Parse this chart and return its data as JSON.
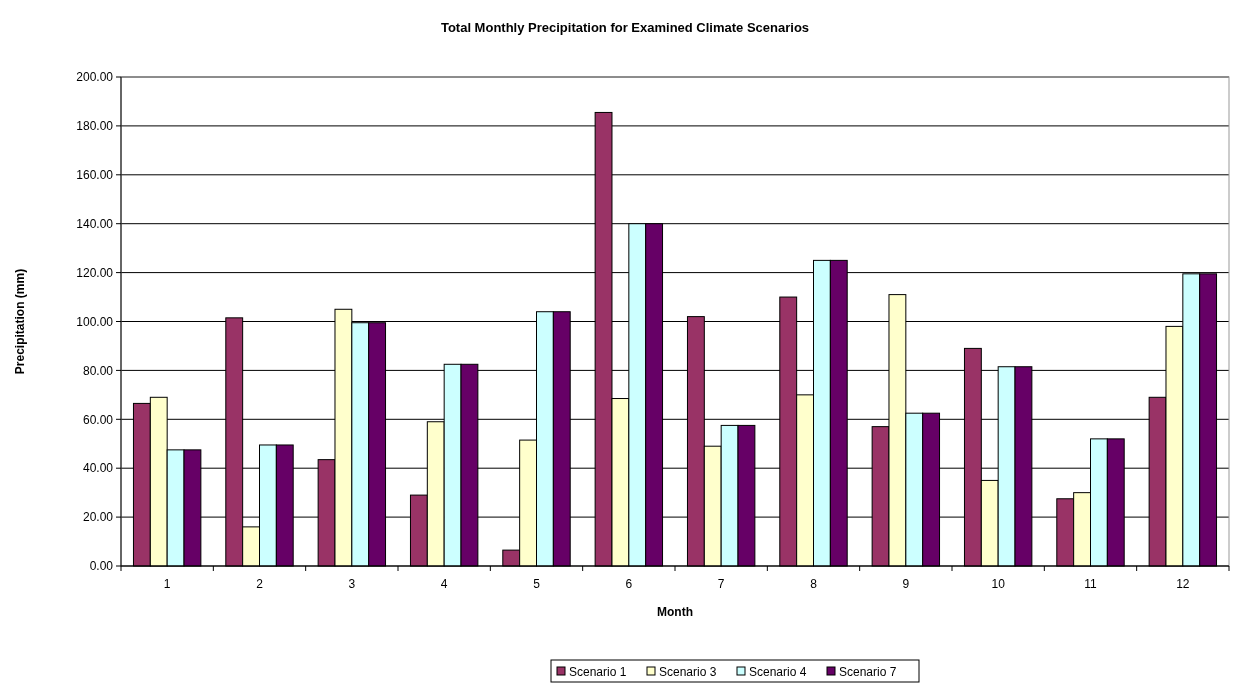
{
  "chart_data": {
    "type": "bar",
    "title": "Total Monthly Precipitation for Examined Climate Scenarios",
    "xlabel": "Month",
    "ylabel": "Precipitation (mm)",
    "categories": [
      "1",
      "2",
      "3",
      "4",
      "5",
      "6",
      "7",
      "8",
      "9",
      "10",
      "11",
      "12"
    ],
    "series": [
      {
        "name": "Scenario 1",
        "color": "#993366",
        "values": [
          66.5,
          101.5,
          43.5,
          29,
          6.5,
          185.5,
          102,
          110,
          57,
          89,
          27.5,
          69
        ]
      },
      {
        "name": "Scenario 3",
        "color": "#ffffcc",
        "values": [
          69,
          16,
          105,
          59,
          51.5,
          68.5,
          49,
          70,
          111,
          35,
          30,
          98
        ]
      },
      {
        "name": "Scenario 4",
        "color": "#ccffff",
        "values": [
          47.5,
          49.5,
          99.5,
          82.5,
          104,
          140,
          57.5,
          125,
          62.5,
          81.5,
          52,
          119.5
        ]
      },
      {
        "name": "Scenario 7",
        "color": "#660066",
        "values": [
          47.5,
          49.5,
          99.5,
          82.5,
          104,
          140,
          57.5,
          125,
          62.5,
          81.5,
          52,
          119.5
        ]
      }
    ],
    "ylim": [
      0,
      200
    ],
    "yticks": [
      {
        "value": 0,
        "label": "0.00"
      },
      {
        "value": 20,
        "label": "20.00"
      },
      {
        "value": 40,
        "label": "40.00"
      },
      {
        "value": 60,
        "label": "60.00"
      },
      {
        "value": 80,
        "label": "80.00"
      },
      {
        "value": 100,
        "label": "100.00"
      },
      {
        "value": 120,
        "label": "120.00"
      },
      {
        "value": 140,
        "label": "140.00"
      },
      {
        "value": 160,
        "label": "160.00"
      },
      {
        "value": 180,
        "label": "180.00"
      },
      {
        "value": 200,
        "label": "200.00"
      }
    ],
    "grid": "y",
    "legend": "bottom"
  }
}
